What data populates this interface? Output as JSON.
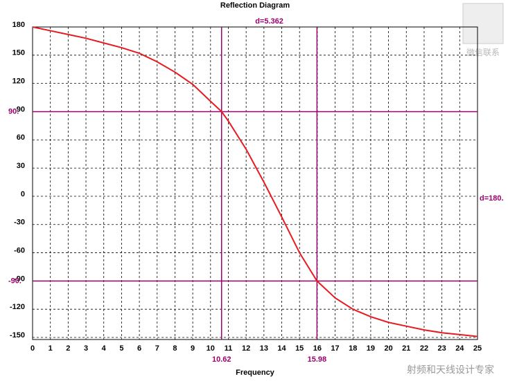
{
  "chart_data": {
    "type": "line",
    "title": "Reflection Diagram",
    "x_label": "Frequency",
    "x": [
      0,
      1,
      2,
      3,
      4,
      5,
      6,
      7,
      8,
      9,
      10,
      10.62,
      11,
      12,
      13,
      14,
      15,
      15.98,
      17,
      18,
      19,
      20,
      21,
      22,
      23,
      24,
      25
    ],
    "values": [
      180,
      176,
      172,
      168,
      163,
      158,
      152,
      143,
      132,
      119,
      101,
      90,
      80,
      50,
      15,
      -22,
      -60,
      -90,
      -108,
      -120,
      -128,
      -134,
      -138,
      -142,
      -145,
      -147,
      -149
    ],
    "color": "#e8191f",
    "marker_color": "#99006b",
    "grid": true,
    "xlim": [
      0,
      25
    ],
    "xticks": [
      0,
      1,
      2,
      3,
      4,
      5,
      6,
      7,
      8,
      9,
      10,
      11,
      12,
      13,
      14,
      15,
      16,
      17,
      18,
      19,
      20,
      21,
      22,
      23,
      24,
      25
    ],
    "ylim": [
      -150,
      180
    ],
    "yticks": [
      -150,
      -120,
      -90,
      -60,
      -30,
      0,
      30,
      60,
      90,
      120,
      150,
      180
    ],
    "x_markers": [
      10.62,
      15.98
    ],
    "y_markers": [
      {
        "value": 90,
        "label": "90."
      },
      {
        "value": -90,
        "label": "-90."
      }
    ],
    "annotations": [
      "d=5.362",
      "d=180."
    ]
  },
  "watermark": {
    "contact": "微信联系",
    "slogan": "射频和天线设计专家"
  }
}
